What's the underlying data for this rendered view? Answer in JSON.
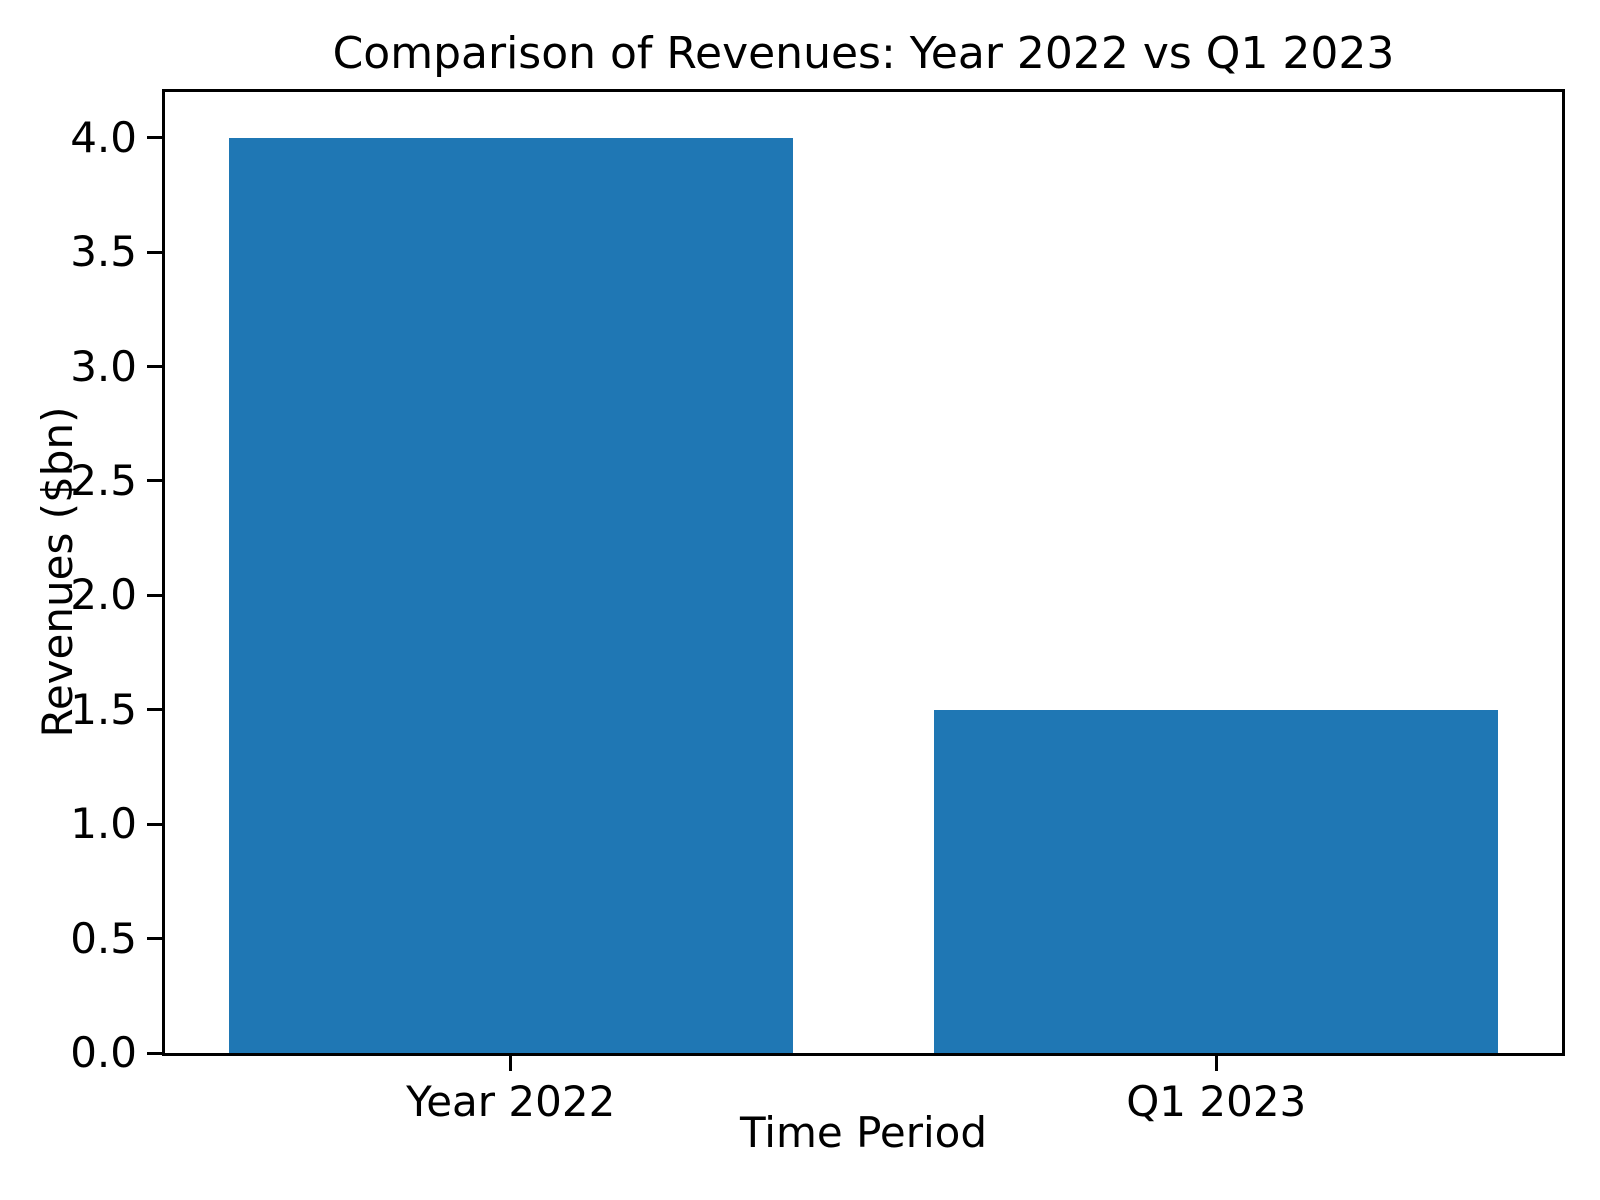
{
  "chart_data": {
    "type": "bar",
    "title": "Comparison of Revenues: Year 2022 vs Q1 2023",
    "xlabel": "Time Period",
    "ylabel": "Revenues ($bn)",
    "categories": [
      "Year 2022",
      "Q1 2023"
    ],
    "values": [
      4.0,
      1.5
    ],
    "x_positions": [
      0,
      1
    ],
    "bar_width": 0.8,
    "xlim": [
      -0.49,
      1.49
    ],
    "ylim": [
      0,
      4.2
    ],
    "yticks": [
      0.0,
      0.5,
      1.0,
      1.5,
      2.0,
      2.5,
      3.0,
      3.5,
      4.0
    ],
    "ytick_decimals": 1,
    "grid": false,
    "legend_position": "none",
    "bar_color": "#1f77b4",
    "spine_color": "#000000",
    "text_color": "#000000",
    "background_color": "#ffffff"
  }
}
